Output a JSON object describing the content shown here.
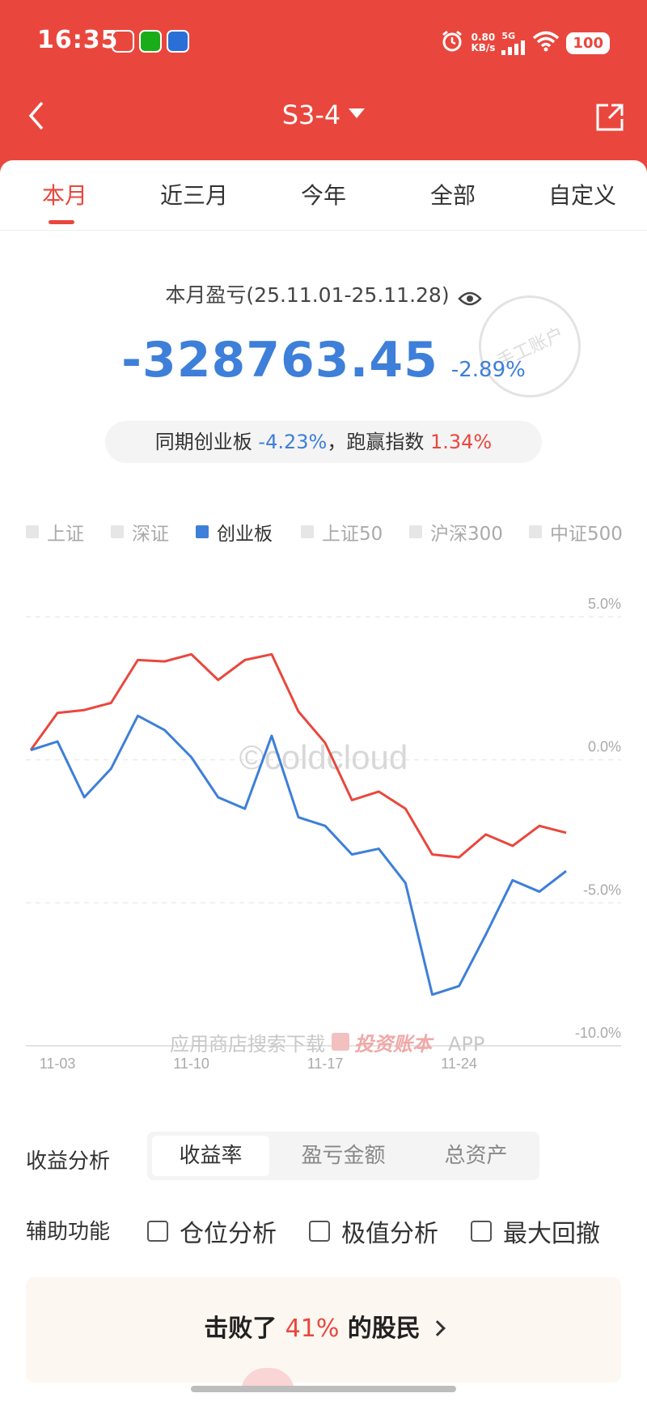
{
  "status_bar": {
    "time": "16:35",
    "net_speed_value": "0.80",
    "net_speed_unit": "KB/s",
    "network": "5G",
    "battery": "100"
  },
  "nav": {
    "title": "S3-4"
  },
  "tabs": [
    {
      "label": "本月",
      "active": true
    },
    {
      "label": "近三月",
      "active": false
    },
    {
      "label": "今年",
      "active": false
    },
    {
      "label": "全部",
      "active": false
    },
    {
      "label": "自定义",
      "active": false
    }
  ],
  "summary": {
    "period_label": "本月盈亏(25.11.01-25.11.28)",
    "amount": "-328763.45",
    "percent": "-2.89%",
    "stamp_text": "手工账户"
  },
  "compare": {
    "prefix": "同期创业板",
    "chinext_pct": "-4.23%",
    "separator": "，",
    "mid": "跑赢指数",
    "outperform_pct": "1.34%"
  },
  "legend": [
    {
      "label": "上证",
      "on": false
    },
    {
      "label": "深证",
      "on": false
    },
    {
      "label": "创业板",
      "on": true
    },
    {
      "label": "上证50",
      "on": false
    },
    {
      "label": "沪深300",
      "on": false
    },
    {
      "label": "中证500",
      "on": false
    }
  ],
  "chart_data": {
    "type": "line",
    "x": [
      "11-03",
      "11-04",
      "11-05",
      "11-06",
      "11-07",
      "11-10",
      "11-11",
      "11-12",
      "11-13",
      "11-14",
      "11-17",
      "11-18",
      "11-19",
      "11-20",
      "11-21",
      "11-24",
      "11-25",
      "11-26",
      "11-27",
      "11-28"
    ],
    "x_tick_labels": [
      "11-03",
      "11-10",
      "11-17",
      "11-24"
    ],
    "y_tick_labels": [
      "5.0%",
      "0.0%",
      "-5.0%",
      "-10.0%"
    ],
    "ylim": [
      -10,
      5
    ],
    "series": [
      {
        "color": "#e9473d",
        "start": 0,
        "values": [
          1.3,
          1.4,
          1.65,
          3.15,
          3.1,
          3.35,
          2.45,
          3.15,
          3.35,
          1.35,
          0.25,
          -1.75,
          -1.45,
          -2.05,
          -3.65,
          -3.75,
          -2.95,
          -3.35,
          -2.65,
          -2.89
        ]
      },
      {
        "color": "#3d7fd9",
        "start": 0,
        "values": [
          0.3,
          -1.65,
          -0.65,
          1.2,
          0.7,
          -0.25,
          -1.65,
          -2.05,
          0.5,
          -2.35,
          -2.65,
          -3.65,
          -3.45,
          -4.65,
          -8.55,
          -8.25,
          -6.45,
          -4.55,
          -4.95,
          -4.23
        ]
      }
    ]
  },
  "watermark": {
    "copyright": "©coldcloud",
    "promo_prefix": "应用商店搜索下载",
    "promo_brand": "投资账本",
    "promo_suffix": "APP"
  },
  "analysis": {
    "label": "收益分析",
    "options": [
      {
        "label": "收益率",
        "active": true
      },
      {
        "label": "盈亏金额",
        "active": false
      },
      {
        "label": "总资产",
        "active": false
      }
    ]
  },
  "aux": {
    "label": "辅助功能",
    "options": [
      "仓位分析",
      "极值分析",
      "最大回撤"
    ]
  },
  "beat": {
    "prefix": "击败了",
    "pct": "41%",
    "suffix": "的股民"
  },
  "colors": {
    "brand_red": "#e9473d",
    "portfolio": "#e9473d",
    "index": "#3d7fd9"
  }
}
